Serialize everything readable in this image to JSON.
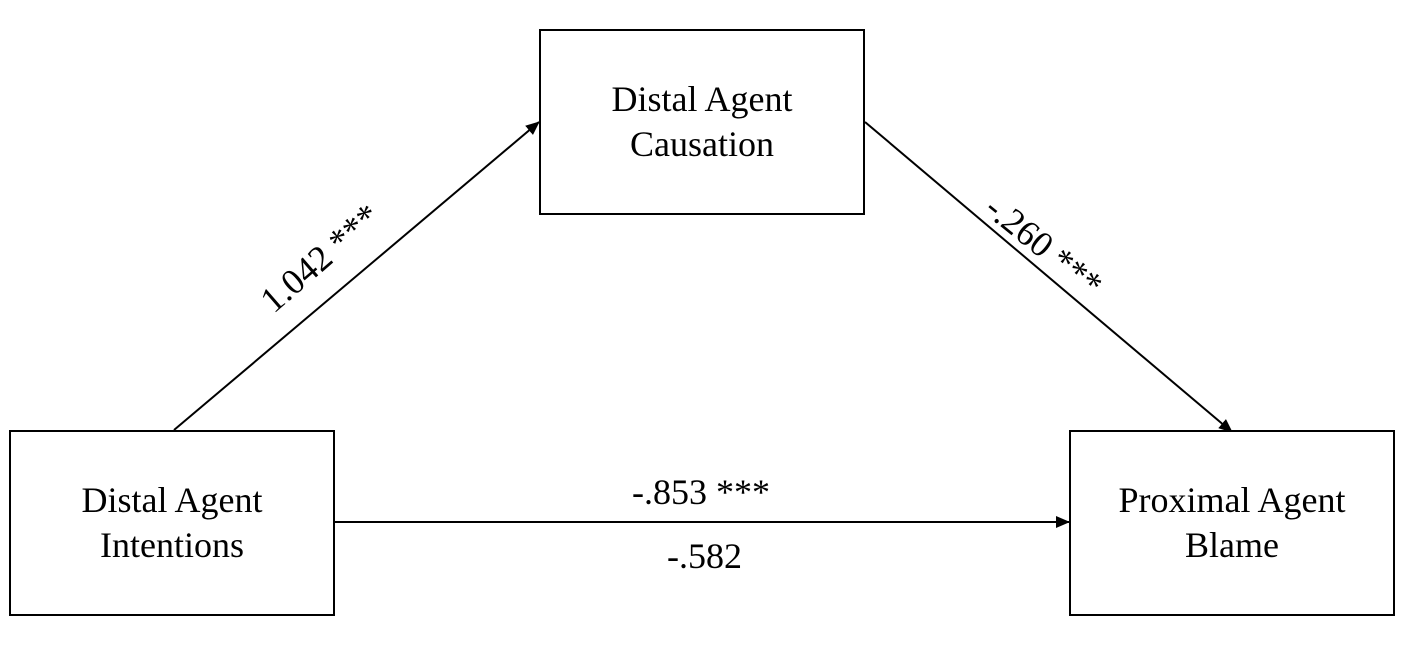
{
  "nodes": {
    "mediator": {
      "line1": "Distal Agent",
      "line2": "Causation"
    },
    "predictor": {
      "line1": "Distal Agent",
      "line2": "Intentions"
    },
    "outcome": {
      "line1": "Proximal Agent",
      "line2": "Blame"
    }
  },
  "paths": {
    "a": "1.042 ***",
    "b": "-.260 ***",
    "c_total": "-.853 ***",
    "c_direct": "-.582"
  },
  "colors": {
    "stroke": "#000000",
    "background": "#ffffff"
  }
}
